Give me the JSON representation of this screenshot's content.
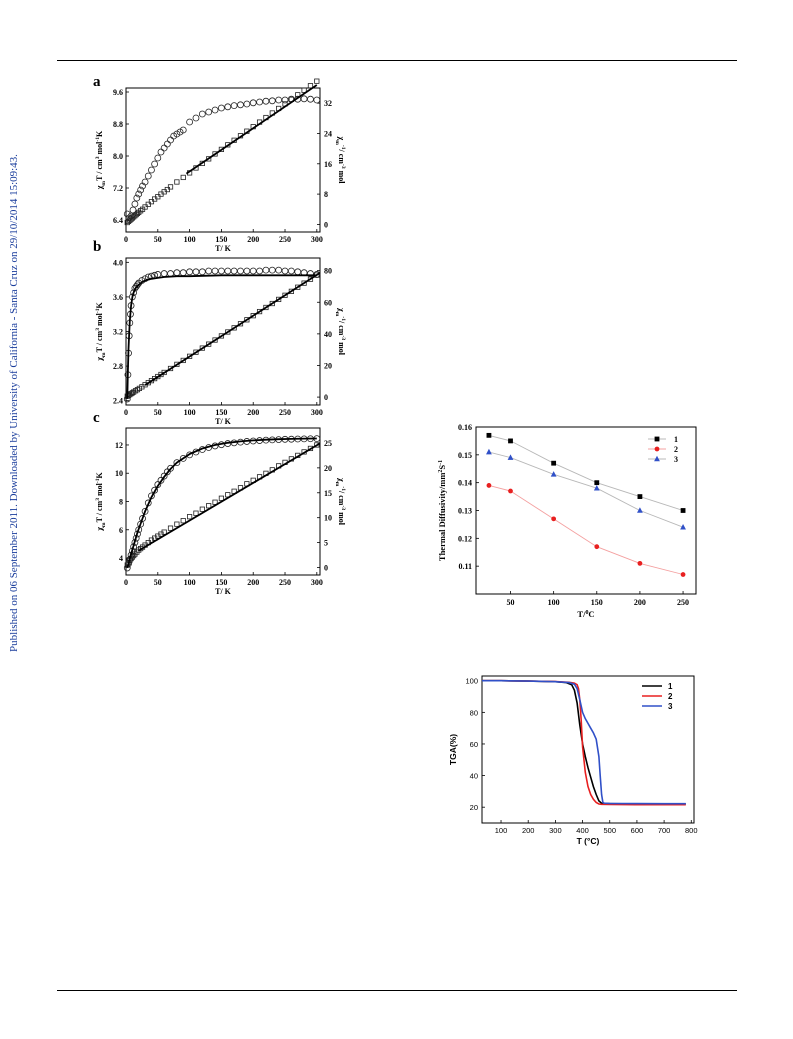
{
  "page": {
    "sidebar_text": "Published on 06 September 2011. Downloaded by University of California - Santa Cruz on 29/10/2014 15:09:43."
  },
  "chart_data": [
    {
      "id": "panel-a",
      "panel_label": "a",
      "type": "scatter",
      "xlabel": "T/ K",
      "ylabel_left": "χmT / cm3 mol-1K",
      "ylabel_right": "χm-1/ cm-3 mol",
      "xlim": [
        0,
        305
      ],
      "ylim": [
        6.1,
        9.7
      ],
      "ylim_right": [
        -2,
        36
      ],
      "xticks": [
        0,
        50,
        100,
        150,
        200,
        250,
        300
      ],
      "yticks": [
        "6.4",
        "7.2",
        "8.0",
        "8.8",
        "9.6"
      ],
      "yticks_right": [
        "0",
        "8",
        "16",
        "24",
        "32"
      ],
      "series": [
        {
          "axis": "left",
          "marker": "circle",
          "x": [
            2,
            5,
            8,
            11,
            14,
            17,
            20,
            23,
            26,
            30,
            35,
            40,
            45,
            50,
            55,
            60,
            65,
            70,
            75,
            80,
            85,
            90,
            100,
            110,
            120,
            130,
            140,
            150,
            160,
            170,
            180,
            190,
            200,
            210,
            220,
            230,
            240,
            250,
            260,
            270,
            280,
            290,
            300
          ],
          "y": [
            6.55,
            6.45,
            6.5,
            6.65,
            6.8,
            6.95,
            7.05,
            7.15,
            7.25,
            7.35,
            7.5,
            7.65,
            7.8,
            7.95,
            8.1,
            8.2,
            8.3,
            8.4,
            8.5,
            8.55,
            8.6,
            8.65,
            8.85,
            8.95,
            9.05,
            9.1,
            9.15,
            9.2,
            9.23,
            9.26,
            9.28,
            9.3,
            9.33,
            9.35,
            9.37,
            9.38,
            9.4,
            9.4,
            9.42,
            9.42,
            9.43,
            9.42,
            9.4
          ]
        },
        {
          "axis": "right",
          "marker": "square",
          "x": [
            2,
            4,
            6,
            8,
            10,
            12,
            14,
            16,
            18,
            20,
            23,
            26,
            30,
            35,
            40,
            45,
            50,
            55,
            60,
            65,
            70,
            80,
            90,
            100,
            110,
            120,
            130,
            140,
            150,
            160,
            170,
            180,
            190,
            200,
            210,
            220,
            230,
            240,
            250,
            260,
            270,
            280,
            290,
            300
          ],
          "y": [
            0.5,
            0.8,
            1.1,
            1.4,
            1.7,
            2.0,
            2.3,
            2.6,
            2.9,
            3.2,
            3.6,
            4.0,
            4.6,
            5.3,
            6.0,
            6.7,
            7.3,
            8.0,
            8.6,
            9.2,
            9.9,
            11.2,
            12.4,
            13.6,
            14.9,
            16.1,
            17.3,
            18.6,
            19.8,
            21.0,
            22.2,
            23.4,
            24.6,
            25.8,
            27.0,
            28.2,
            29.4,
            30.6,
            31.8,
            33.0,
            34.2,
            35.4,
            36.6,
            37.8
          ]
        },
        {
          "axis": "right",
          "type": "line",
          "x": [
            95,
            300
          ],
          "y": [
            13.4,
            36.8
          ]
        }
      ]
    },
    {
      "id": "panel-b",
      "panel_label": "b",
      "type": "scatter",
      "xlabel": "T/ K",
      "ylabel_left": "χmT / cm3 mol-1K",
      "ylabel_right": "χm-1/ cm-3 mol",
      "xlim": [
        0,
        305
      ],
      "ylim": [
        2.35,
        4.05
      ],
      "ylim_right": [
        -5,
        88
      ],
      "xticks": [
        0,
        50,
        100,
        150,
        200,
        250,
        300
      ],
      "yticks": [
        "2.4",
        "2.8",
        "3.2",
        "3.6",
        "4.0"
      ],
      "yticks_right": [
        "0",
        "20",
        "40",
        "60",
        "80"
      ],
      "series": [
        {
          "axis": "left",
          "marker": "circle",
          "x": [
            2,
            3,
            4,
            5,
            6,
            7,
            8,
            10,
            12,
            14,
            16,
            18,
            20,
            25,
            30,
            35,
            40,
            45,
            50,
            60,
            70,
            80,
            90,
            100,
            110,
            120,
            130,
            140,
            150,
            160,
            170,
            180,
            190,
            200,
            210,
            220,
            230,
            240,
            250,
            260,
            270,
            280,
            290,
            300
          ],
          "y": [
            2.42,
            2.7,
            2.95,
            3.15,
            3.3,
            3.4,
            3.5,
            3.6,
            3.65,
            3.7,
            3.72,
            3.74,
            3.76,
            3.79,
            3.81,
            3.83,
            3.84,
            3.85,
            3.86,
            3.87,
            3.87,
            3.88,
            3.88,
            3.89,
            3.89,
            3.89,
            3.9,
            3.9,
            3.9,
            3.9,
            3.9,
            3.9,
            3.9,
            3.9,
            3.9,
            3.91,
            3.91,
            3.91,
            3.9,
            3.9,
            3.89,
            3.88,
            3.87,
            3.86
          ]
        },
        {
          "axis": "right",
          "marker": "square",
          "x": [
            2,
            4,
            6,
            8,
            10,
            12,
            15,
            18,
            21,
            25,
            30,
            35,
            40,
            45,
            50,
            55,
            60,
            70,
            80,
            90,
            100,
            110,
            120,
            130,
            140,
            150,
            160,
            170,
            180,
            190,
            200,
            210,
            220,
            230,
            240,
            250,
            260,
            270,
            280,
            290,
            300
          ],
          "y": [
            0.6,
            1.1,
            1.6,
            2.2,
            2.7,
            3.2,
            4.0,
            4.7,
            5.5,
            6.5,
            7.8,
            9.1,
            10.4,
            11.7,
            13.0,
            14.3,
            15.6,
            18.1,
            20.7,
            23.2,
            25.8,
            28.4,
            31.0,
            33.5,
            36.1,
            38.7,
            41.2,
            43.8,
            46.4,
            48.9,
            51.5,
            54.1,
            56.7,
            59.2,
            61.8,
            64.4,
            66.9,
            69.5,
            72.1,
            74.6,
            77.2
          ]
        },
        {
          "axis": "left",
          "type": "line",
          "x": [
            2,
            3,
            4,
            5,
            6,
            8,
            10,
            12,
            15,
            20,
            25,
            30,
            40,
            50,
            60,
            80,
            100,
            150,
            200,
            250,
            300
          ],
          "y": [
            2.42,
            2.75,
            3.0,
            3.18,
            3.32,
            3.5,
            3.6,
            3.65,
            3.7,
            3.74,
            3.77,
            3.79,
            3.81,
            3.82,
            3.83,
            3.84,
            3.84,
            3.85,
            3.85,
            3.85,
            3.85
          ]
        },
        {
          "axis": "right",
          "type": "line",
          "x": [
            30,
            305
          ],
          "y": [
            7.6,
            78.6
          ]
        }
      ]
    },
    {
      "id": "panel-c",
      "panel_label": "c",
      "type": "scatter",
      "xlabel": "T/ K",
      "ylabel_left": "χmT / cm3 mol-1K",
      "ylabel_right": "χm-1/ cm-3 mol",
      "xlim": [
        0,
        305
      ],
      "ylim": [
        2.8,
        13.2
      ],
      "ylim_right": [
        -1.5,
        28
      ],
      "xticks": [
        0,
        50,
        100,
        150,
        200,
        250,
        300
      ],
      "yticks": [
        "4",
        "6",
        "8",
        "10",
        "12"
      ],
      "yticks_right": [
        "0",
        "5",
        "10",
        "15",
        "20",
        "25"
      ],
      "series": [
        {
          "axis": "left",
          "marker": "circle",
          "x": [
            2,
            4,
            6,
            8,
            10,
            12,
            14,
            16,
            18,
            20,
            23,
            26,
            30,
            35,
            40,
            45,
            50,
            55,
            60,
            65,
            70,
            80,
            90,
            100,
            110,
            120,
            130,
            140,
            150,
            160,
            170,
            180,
            190,
            200,
            210,
            220,
            230,
            240,
            250,
            260,
            270,
            280,
            290,
            300
          ],
          "y": [
            3.3,
            3.6,
            3.9,
            4.2,
            4.5,
            4.8,
            5.1,
            5.4,
            5.7,
            6.0,
            6.4,
            6.8,
            7.3,
            7.9,
            8.4,
            8.8,
            9.2,
            9.5,
            9.8,
            10.1,
            10.35,
            10.75,
            11.05,
            11.3,
            11.5,
            11.68,
            11.82,
            11.93,
            12.02,
            12.1,
            12.15,
            12.2,
            12.25,
            12.28,
            12.31,
            12.34,
            12.36,
            12.38,
            12.4,
            12.41,
            12.42,
            12.43,
            12.44,
            12.45
          ]
        },
        {
          "axis": "right",
          "marker": "square",
          "x": [
            2,
            4,
            6,
            8,
            10,
            12,
            14,
            17,
            20,
            23,
            26,
            30,
            35,
            40,
            45,
            50,
            55,
            60,
            70,
            80,
            90,
            100,
            110,
            120,
            130,
            140,
            150,
            160,
            170,
            180,
            190,
            200,
            210,
            220,
            230,
            240,
            250,
            260,
            270,
            280,
            290,
            300
          ],
          "y": [
            0.5,
            1.0,
            1.4,
            1.8,
            2.1,
            2.4,
            2.7,
            3.1,
            3.5,
            3.8,
            4.1,
            4.5,
            5.0,
            5.5,
            5.9,
            6.3,
            6.7,
            7.1,
            7.9,
            8.7,
            9.4,
            10.2,
            10.9,
            11.7,
            12.4,
            13.1,
            13.9,
            14.6,
            15.3,
            16.0,
            16.8,
            17.5,
            18.2,
            18.9,
            19.6,
            20.4,
            21.1,
            21.8,
            22.5,
            23.2,
            23.9,
            24.6
          ]
        },
        {
          "axis": "left",
          "type": "line",
          "x": [
            2,
            4,
            6,
            8,
            10,
            14,
            18,
            22,
            26,
            30,
            40,
            50,
            60,
            70,
            80,
            100,
            120,
            140,
            160,
            180,
            200,
            220,
            240,
            260,
            280,
            300
          ],
          "y": [
            3.3,
            3.6,
            3.95,
            4.3,
            4.6,
            5.2,
            5.8,
            6.3,
            6.8,
            7.3,
            8.3,
            9.1,
            9.75,
            10.3,
            10.75,
            11.35,
            11.75,
            12.0,
            12.15,
            12.25,
            12.32,
            12.37,
            12.41,
            12.43,
            12.45,
            12.46
          ]
        },
        {
          "axis": "right",
          "type": "line",
          "x": [
            20,
            305
          ],
          "y": [
            3.4,
            24.9
          ]
        }
      ]
    },
    {
      "id": "thermal-diffusivity",
      "type": "line",
      "xlabel": "T/°C",
      "ylabel": "Thermal Diffusivity/mm2S-1",
      "xlim": [
        10,
        265
      ],
      "ylim": [
        0.1,
        0.16
      ],
      "xticks": [
        50,
        100,
        150,
        200,
        250
      ],
      "yticks": [
        "0.11",
        "0.12",
        "0.13",
        "0.14",
        "0.15",
        "0.16"
      ],
      "x": [
        25,
        50,
        100,
        150,
        200,
        250
      ],
      "legend_position": "top-right",
      "series": [
        {
          "name": "1",
          "color": "#000000",
          "marker": "square",
          "values": [
            0.157,
            0.155,
            0.147,
            0.14,
            0.135,
            0.13
          ]
        },
        {
          "name": "2",
          "color": "#e82020",
          "marker": "circle",
          "values": [
            0.139,
            0.137,
            0.127,
            0.117,
            0.111,
            0.107
          ]
        },
        {
          "name": "3",
          "color": "#3050c8",
          "marker": "triangle",
          "values": [
            0.151,
            0.149,
            0.143,
            0.138,
            0.13,
            0.124
          ]
        }
      ]
    },
    {
      "id": "tga",
      "type": "line",
      "xlabel": "T (°C)",
      "ylabel": "TGA(%)",
      "xlim": [
        30,
        810
      ],
      "ylim": [
        10,
        103
      ],
      "xticks": [
        100,
        200,
        300,
        400,
        500,
        600,
        700,
        800
      ],
      "yticks": [
        "20",
        "40",
        "60",
        "80",
        "100"
      ],
      "legend_position": "top-right",
      "series": [
        {
          "name": "1",
          "color": "#000000",
          "x": [
            30,
            100,
            200,
            300,
            340,
            360,
            370,
            380,
            390,
            400,
            410,
            420,
            430,
            440,
            450,
            460,
            470,
            480,
            500,
            600,
            700,
            780
          ],
          "y": [
            100,
            100,
            99.8,
            99.4,
            98.8,
            97.5,
            94,
            86,
            72,
            60,
            52,
            45,
            39,
            33,
            28,
            24,
            22.5,
            22.3,
            22.2,
            22.1,
            22,
            22
          ]
        },
        {
          "name": "2",
          "color": "#e82020",
          "x": [
            30,
            100,
            200,
            300,
            350,
            370,
            380,
            385,
            390,
            395,
            400,
            410,
            420,
            430,
            440,
            450,
            460,
            470,
            500,
            600,
            700,
            780
          ],
          "y": [
            100,
            100,
            99.8,
            99.5,
            99,
            98.5,
            97.5,
            95,
            88,
            75,
            58,
            42,
            33,
            28,
            25,
            23,
            22,
            21.8,
            21.7,
            21.6,
            21.6,
            21.6
          ]
        },
        {
          "name": "3",
          "color": "#3050c8",
          "x": [
            30,
            100,
            200,
            300,
            350,
            370,
            380,
            390,
            400,
            410,
            420,
            430,
            440,
            450,
            460,
            465,
            470,
            475,
            480,
            500,
            600,
            700,
            780
          ],
          "y": [
            100,
            100,
            99.8,
            99.4,
            98.8,
            97.8,
            95,
            88,
            80,
            76,
            73,
            70,
            67,
            63,
            52,
            40,
            28,
            23,
            22.5,
            22.4,
            22.3,
            22.2,
            22.2
          ]
        }
      ]
    }
  ]
}
